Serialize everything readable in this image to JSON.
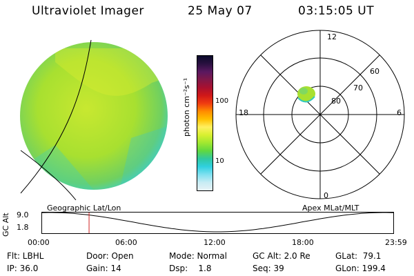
{
  "header": {
    "instrument": "Ultraviolet Imager",
    "date": "25 May 07",
    "time": "03:15:05 UT"
  },
  "colorbar": {
    "unit_label": "photon cm⁻²s⁻¹",
    "ticks": [
      "100",
      "10"
    ],
    "colors": [
      "#0a0a2a",
      "#2a1040",
      "#5a1860",
      "#801848",
      "#a81030",
      "#d01818",
      "#f03c10",
      "#ff8c00",
      "#ffc000",
      "#fff060",
      "#d8f030",
      "#a0e830",
      "#60d840",
      "#30c8a0",
      "#30d0e0",
      "#80e0f0",
      "#c8ecf4",
      "#e8f2f6"
    ]
  },
  "polar_plot": {
    "mlt_labels": [
      "12",
      "18",
      "6",
      "0"
    ],
    "mlat_labels": [
      "60",
      "70",
      "80"
    ]
  },
  "timeline": {
    "geo_label": "Geographic Lat/Lon",
    "apex_label": "Apex MLat/MLT",
    "y_axis_label": "GC Alt",
    "y_ticks": [
      "9.0",
      "1.8"
    ],
    "x_ticks": [
      "00:00",
      "06:00",
      "12:00",
      "18:00",
      "23:59"
    ],
    "marker_time_hours": 3.25,
    "marker_color": "#d02020"
  },
  "info": {
    "flt": "Flt: LBHL",
    "ip": "IP: 36.0",
    "door": "Door: Open",
    "gain": "Gain: 14",
    "mode": "Mode: Normal",
    "dsp": "Dsp:    1.8",
    "gcalt": "GC Alt: 2.0 Re",
    "seq": "Seq: 39",
    "glat": "GLat:  79.1",
    "glon": "GLon: 199.4"
  }
}
